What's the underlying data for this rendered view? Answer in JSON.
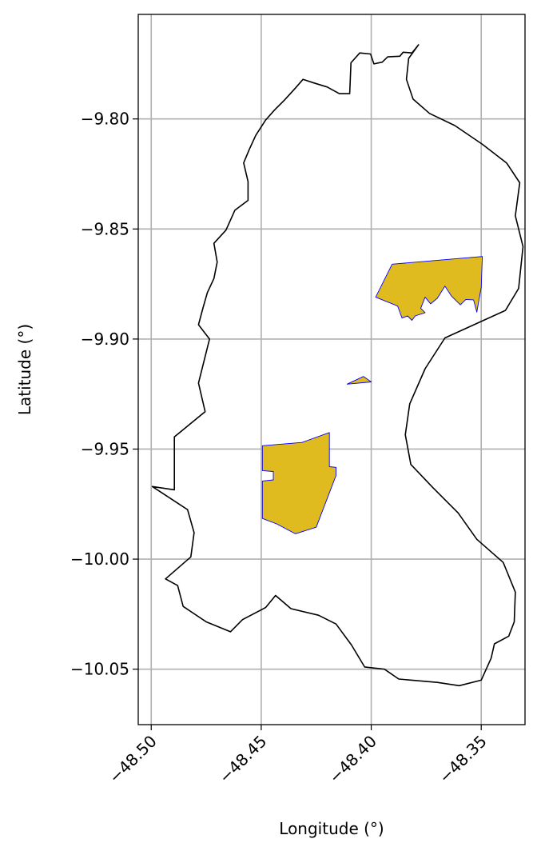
{
  "chart_data": {
    "type": "map",
    "title": "",
    "xlabel": "Longitude (°)",
    "ylabel": "Latitude (°)",
    "xlim": [
      -48.5059,
      -48.3301
    ],
    "ylim": [
      -10.0752,
      -9.7525
    ],
    "grid": true,
    "x_ticks": [
      -48.5,
      -48.45,
      -48.4,
      -48.35
    ],
    "x_tick_labels": [
      "−48.50",
      "−48.45",
      "−48.40",
      "−48.35"
    ],
    "y_ticks": [
      -9.8,
      -9.85,
      -9.9,
      -9.95,
      -10.0,
      -10.05
    ],
    "y_tick_labels": [
      "−9.80",
      "−9.85",
      "−9.90",
      "−9.95",
      "−10.00",
      "−10.05"
    ],
    "boundary": {
      "edge_color": "#000000",
      "fill": "none",
      "coords": [
        [
          -48.3785,
          -9.7663
        ],
        [
          -48.3815,
          -9.77
        ],
        [
          -48.3855,
          -9.7697
        ],
        [
          -48.387,
          -9.7715
        ],
        [
          -48.3925,
          -9.7718
        ],
        [
          -48.395,
          -9.7742
        ],
        [
          -48.3988,
          -9.775
        ],
        [
          -48.4003,
          -9.7705
        ],
        [
          -48.4052,
          -9.77
        ],
        [
          -48.4092,
          -9.7745
        ],
        [
          -48.4098,
          -9.7885
        ],
        [
          -48.4145,
          -9.7885
        ],
        [
          -48.42,
          -9.7855
        ],
        [
          -48.4265,
          -9.7835
        ],
        [
          -48.431,
          -9.782
        ],
        [
          -48.4345,
          -9.786
        ],
        [
          -48.4395,
          -9.7915
        ],
        [
          -48.444,
          -9.796
        ],
        [
          -48.448,
          -9.8005
        ],
        [
          -48.4525,
          -9.8075
        ],
        [
          -48.4555,
          -9.814
        ],
        [
          -48.458,
          -9.82
        ],
        [
          -48.456,
          -9.8285
        ],
        [
          -48.456,
          -9.837
        ],
        [
          -48.462,
          -9.8415
        ],
        [
          -48.466,
          -9.8505
        ],
        [
          -48.4715,
          -9.8565
        ],
        [
          -48.47,
          -9.865
        ],
        [
          -48.4715,
          -9.8725
        ],
        [
          -48.4745,
          -9.879
        ],
        [
          -48.4765,
          -9.886
        ],
        [
          -48.4785,
          -9.8935
        ],
        [
          -48.4735,
          -9.9
        ],
        [
          -48.4785,
          -9.92
        ],
        [
          -48.4755,
          -9.933
        ],
        [
          -48.4895,
          -9.9445
        ],
        [
          -48.4895,
          -9.9685
        ],
        [
          -48.4995,
          -9.967
        ],
        [
          -48.4835,
          -9.9775
        ],
        [
          -48.4805,
          -9.988
        ],
        [
          -48.482,
          -9.999
        ],
        [
          -48.4935,
          -10.009
        ],
        [
          -48.488,
          -10.012
        ],
        [
          -48.4855,
          -10.0215
        ],
        [
          -48.475,
          -10.0285
        ],
        [
          -48.464,
          -10.033
        ],
        [
          -48.4585,
          -10.0275
        ],
        [
          -48.448,
          -10.022
        ],
        [
          -48.4435,
          -10.0165
        ],
        [
          -48.4365,
          -10.0225
        ],
        [
          -48.424,
          -10.0255
        ],
        [
          -48.416,
          -10.0295
        ],
        [
          -48.409,
          -10.039
        ],
        [
          -48.403,
          -10.049
        ],
        [
          -48.394,
          -10.05
        ],
        [
          -48.3875,
          -10.0545
        ],
        [
          -48.37,
          -10.056
        ],
        [
          -48.36,
          -10.0575
        ],
        [
          -48.35,
          -10.055
        ],
        [
          -48.3455,
          -10.045
        ],
        [
          -48.344,
          -10.0385
        ],
        [
          -48.3375,
          -10.035
        ],
        [
          -48.335,
          -10.0285
        ],
        [
          -48.3345,
          -10.015
        ],
        [
          -48.34,
          -10.0015
        ],
        [
          -48.352,
          -9.991
        ],
        [
          -48.3605,
          -9.979
        ],
        [
          -48.372,
          -9.9675
        ],
        [
          -48.382,
          -9.957
        ],
        [
          -48.3845,
          -9.9435
        ],
        [
          -48.3825,
          -9.9295
        ],
        [
          -48.3755,
          -9.9135
        ],
        [
          -48.3665,
          -9.8995
        ],
        [
          -48.35,
          -9.892
        ],
        [
          -48.339,
          -9.887
        ],
        [
          -48.333,
          -9.877
        ],
        [
          -48.331,
          -9.858
        ],
        [
          -48.3345,
          -9.844
        ],
        [
          -48.3325,
          -9.829
        ],
        [
          -48.3385,
          -9.82
        ],
        [
          -48.3495,
          -9.8115
        ],
        [
          -48.362,
          -9.803
        ],
        [
          -48.3735,
          -9.7975
        ],
        [
          -48.381,
          -9.791
        ],
        [
          -48.384,
          -9.782
        ],
        [
          -48.383,
          -9.7725
        ],
        [
          -48.3785,
          -9.7663
        ]
      ]
    },
    "polygons": [
      {
        "fill": "#dfbb1f",
        "edge_color": "#0000ff",
        "coords": [
          [
            -48.3495,
            -9.8625
          ],
          [
            -48.35,
            -9.8765
          ],
          [
            -48.352,
            -9.8878
          ],
          [
            -48.3535,
            -9.8822
          ],
          [
            -48.357,
            -9.882
          ],
          [
            -48.3595,
            -9.8845
          ],
          [
            -48.3635,
            -9.8805
          ],
          [
            -48.3665,
            -9.876
          ],
          [
            -48.37,
            -9.8815
          ],
          [
            -48.373,
            -9.884
          ],
          [
            -48.3755,
            -9.881
          ],
          [
            -48.3775,
            -9.886
          ],
          [
            -48.3755,
            -9.888
          ],
          [
            -48.38,
            -9.8895
          ],
          [
            -48.3815,
            -9.8915
          ],
          [
            -48.3835,
            -9.8895
          ],
          [
            -48.386,
            -9.8905
          ],
          [
            -48.388,
            -9.885
          ],
          [
            -48.398,
            -9.881
          ],
          [
            -48.3905,
            -9.866
          ],
          [
            -48.3495,
            -9.8625
          ]
        ]
      },
      {
        "fill": "#dfbb1f",
        "edge_color": "#0000ff",
        "coords": [
          [
            -48.411,
            -9.9205
          ],
          [
            -48.4035,
            -9.917
          ],
          [
            -48.4,
            -9.9195
          ],
          [
            -48.411,
            -9.9205
          ]
        ]
      },
      {
        "fill": "#dfbb1f",
        "edge_color": "#0000ff",
        "coords": [
          [
            -48.4495,
            -9.9485
          ],
          [
            -48.4315,
            -9.947
          ],
          [
            -48.419,
            -9.9425
          ],
          [
            -48.419,
            -9.958
          ],
          [
            -48.416,
            -9.9583
          ],
          [
            -48.416,
            -9.962
          ],
          [
            -48.425,
            -9.9855
          ],
          [
            -48.4345,
            -9.9885
          ],
          [
            -48.443,
            -9.984
          ],
          [
            -48.4495,
            -9.9815
          ],
          [
            -48.4495,
            -9.9645
          ],
          [
            -48.4445,
            -9.964
          ],
          [
            -48.4445,
            -9.9602
          ],
          [
            -48.4495,
            -9.9598
          ],
          [
            -48.4495,
            -9.9485
          ]
        ]
      }
    ]
  }
}
